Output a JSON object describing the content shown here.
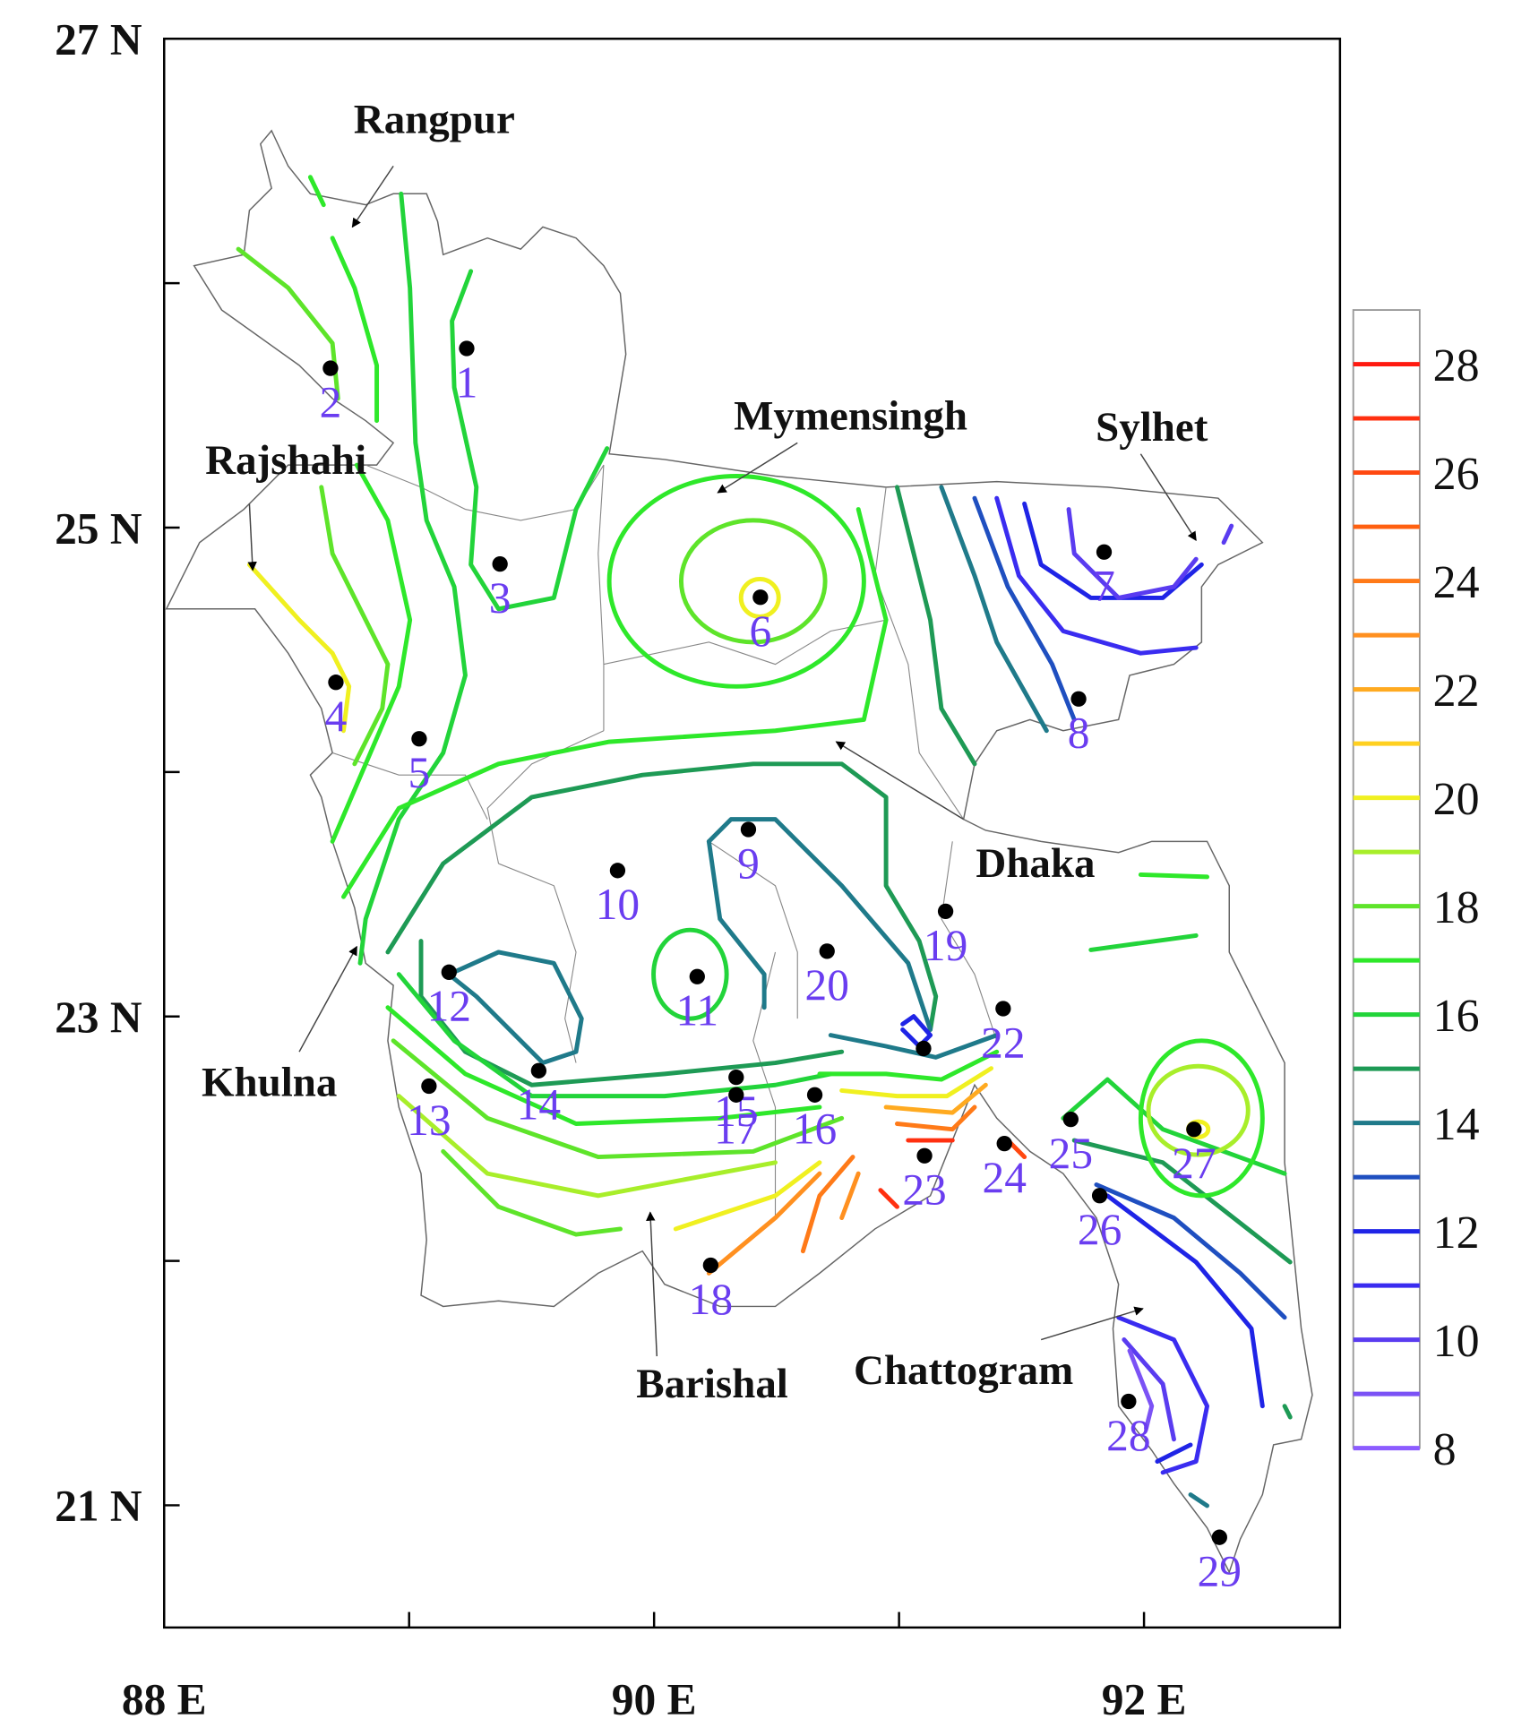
{
  "map": {
    "xlim": [
      88,
      92.8
    ],
    "ylim": [
      20.5,
      27
    ],
    "xticks": [
      {
        "value": 88,
        "label": "88 E"
      },
      {
        "value": 89,
        "label": null
      },
      {
        "value": 90,
        "label": "90 E"
      },
      {
        "value": 91,
        "label": null
      },
      {
        "value": 92,
        "label": "92 E"
      }
    ],
    "yticks": [
      {
        "value": 21,
        "label": "21 N"
      },
      {
        "value": 22,
        "label": null
      },
      {
        "value": 23,
        "label": "23 N"
      },
      {
        "value": 24,
        "label": null
      },
      {
        "value": 25,
        "label": "25 N"
      },
      {
        "value": 26,
        "label": null
      },
      {
        "value": 27,
        "label": "27 N"
      }
    ],
    "stations": [
      {
        "label": "1",
        "lon": 89.235,
        "lat": 25.733
      },
      {
        "label": "2",
        "lon": 88.679,
        "lat": 25.652
      },
      {
        "label": "3",
        "lon": 89.371,
        "lat": 24.851
      },
      {
        "label": "4",
        "lon": 88.701,
        "lat": 24.367
      },
      {
        "label": "5",
        "lon": 89.041,
        "lat": 24.136
      },
      {
        "label": "6",
        "lon": 90.434,
        "lat": 24.715
      },
      {
        "label": "7",
        "lon": 91.837,
        "lat": 24.9
      },
      {
        "label": "8",
        "lon": 91.733,
        "lat": 24.299
      },
      {
        "label": "9",
        "lon": 90.385,
        "lat": 23.765
      },
      {
        "label": "10",
        "lon": 89.851,
        "lat": 23.597
      },
      {
        "label": "11",
        "lon": 90.176,
        "lat": 23.163
      },
      {
        "label": "12",
        "lon": 89.163,
        "lat": 23.181
      },
      {
        "label": "13",
        "lon": 89.081,
        "lat": 22.715
      },
      {
        "label": "14",
        "lon": 89.529,
        "lat": 22.778
      },
      {
        "label": "15",
        "lon": 90.335,
        "lat": 22.751
      },
      {
        "label": "16",
        "lon": 90.656,
        "lat": 22.679
      },
      {
        "label": "17",
        "lon": 90.335,
        "lat": 22.679
      },
      {
        "label": "18",
        "lon": 90.231,
        "lat": 21.982
      },
      {
        "label": "19",
        "lon": 91.19,
        "lat": 23.43
      },
      {
        "label": "20",
        "lon": 90.706,
        "lat": 23.267
      },
      {
        "label": null,
        "lon": 91.1,
        "lat": 22.869
      },
      {
        "label": "22",
        "lon": 91.425,
        "lat": 23.032
      },
      {
        "label": "23",
        "lon": 91.104,
        "lat": 22.43
      },
      {
        "label": "24",
        "lon": 91.43,
        "lat": 22.48
      },
      {
        "label": "25",
        "lon": 91.701,
        "lat": 22.579
      },
      {
        "label": "26",
        "lon": 91.819,
        "lat": 22.267
      },
      {
        "label": "27",
        "lon": 92.204,
        "lat": 22.538
      },
      {
        "label": "28",
        "lon": 91.937,
        "lat": 21.425
      },
      {
        "label": "29",
        "lon": 92.308,
        "lat": 20.869
      }
    ],
    "divisions": [
      {
        "name": "Rangpur"
      },
      {
        "name": "Rajshahi"
      },
      {
        "name": "Mymensingh"
      },
      {
        "name": "Sylhet"
      },
      {
        "name": "Dhaka"
      },
      {
        "name": "Khulna"
      },
      {
        "name": "Barishal"
      },
      {
        "name": "Chattogram"
      }
    ],
    "colorbar": {
      "levels": [
        8,
        9,
        10,
        11,
        12,
        13,
        14,
        15,
        16,
        17,
        18,
        19,
        20,
        21,
        22,
        23,
        24,
        25,
        26,
        27,
        28
      ],
      "colors": [
        "#8c5cff",
        "#7b52f5",
        "#5a3cf0",
        "#3a2cf0",
        "#1f24e6",
        "#1f4fc0",
        "#1f7a8a",
        "#1e9a55",
        "#22d43a",
        "#2ee82a",
        "#5ee42a",
        "#a8ee2a",
        "#f0f020",
        "#ffd020",
        "#ffaa20",
        "#ff9020",
        "#ff7a18",
        "#ff6010",
        "#ff4810",
        "#ff3010",
        "#ff1a10"
      ],
      "lim": [
        8,
        29
      ],
      "ticks": [
        8,
        10,
        12,
        14,
        16,
        18,
        20,
        22,
        24,
        26,
        28
      ]
    }
  }
}
